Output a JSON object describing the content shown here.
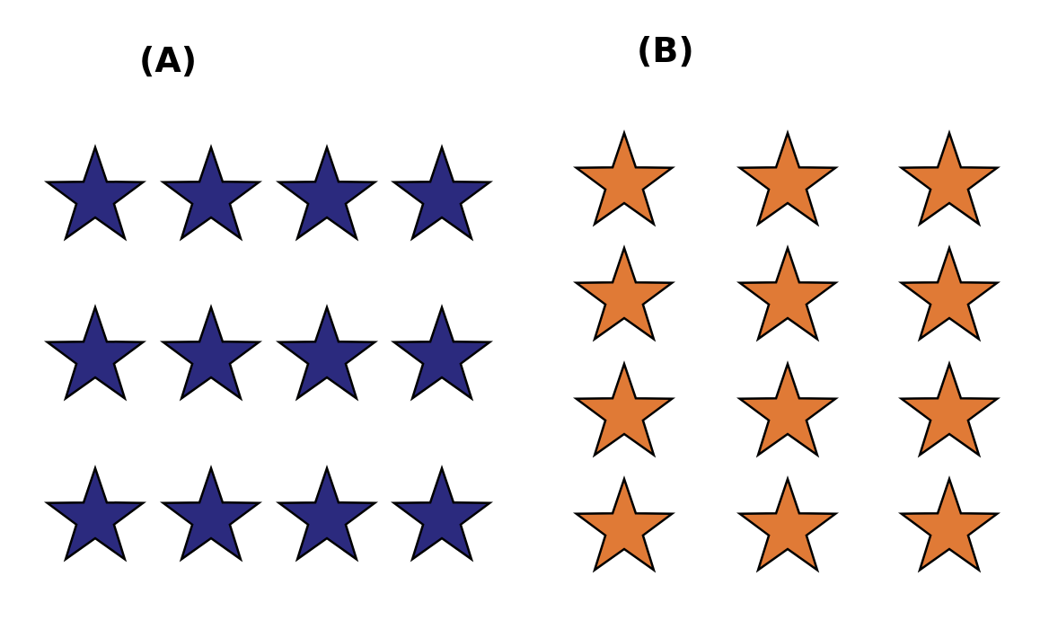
{
  "panels": [
    {
      "label": "(A)",
      "rows": 3,
      "columns": 4,
      "star_fill": "#2B2A7E",
      "star_stroke": "#000000",
      "shape": "star-icon"
    },
    {
      "label": "(B)",
      "rows": 4,
      "columns": 3,
      "star_fill": "#E07A36",
      "star_stroke": "#000000",
      "shape": "star-icon"
    }
  ]
}
